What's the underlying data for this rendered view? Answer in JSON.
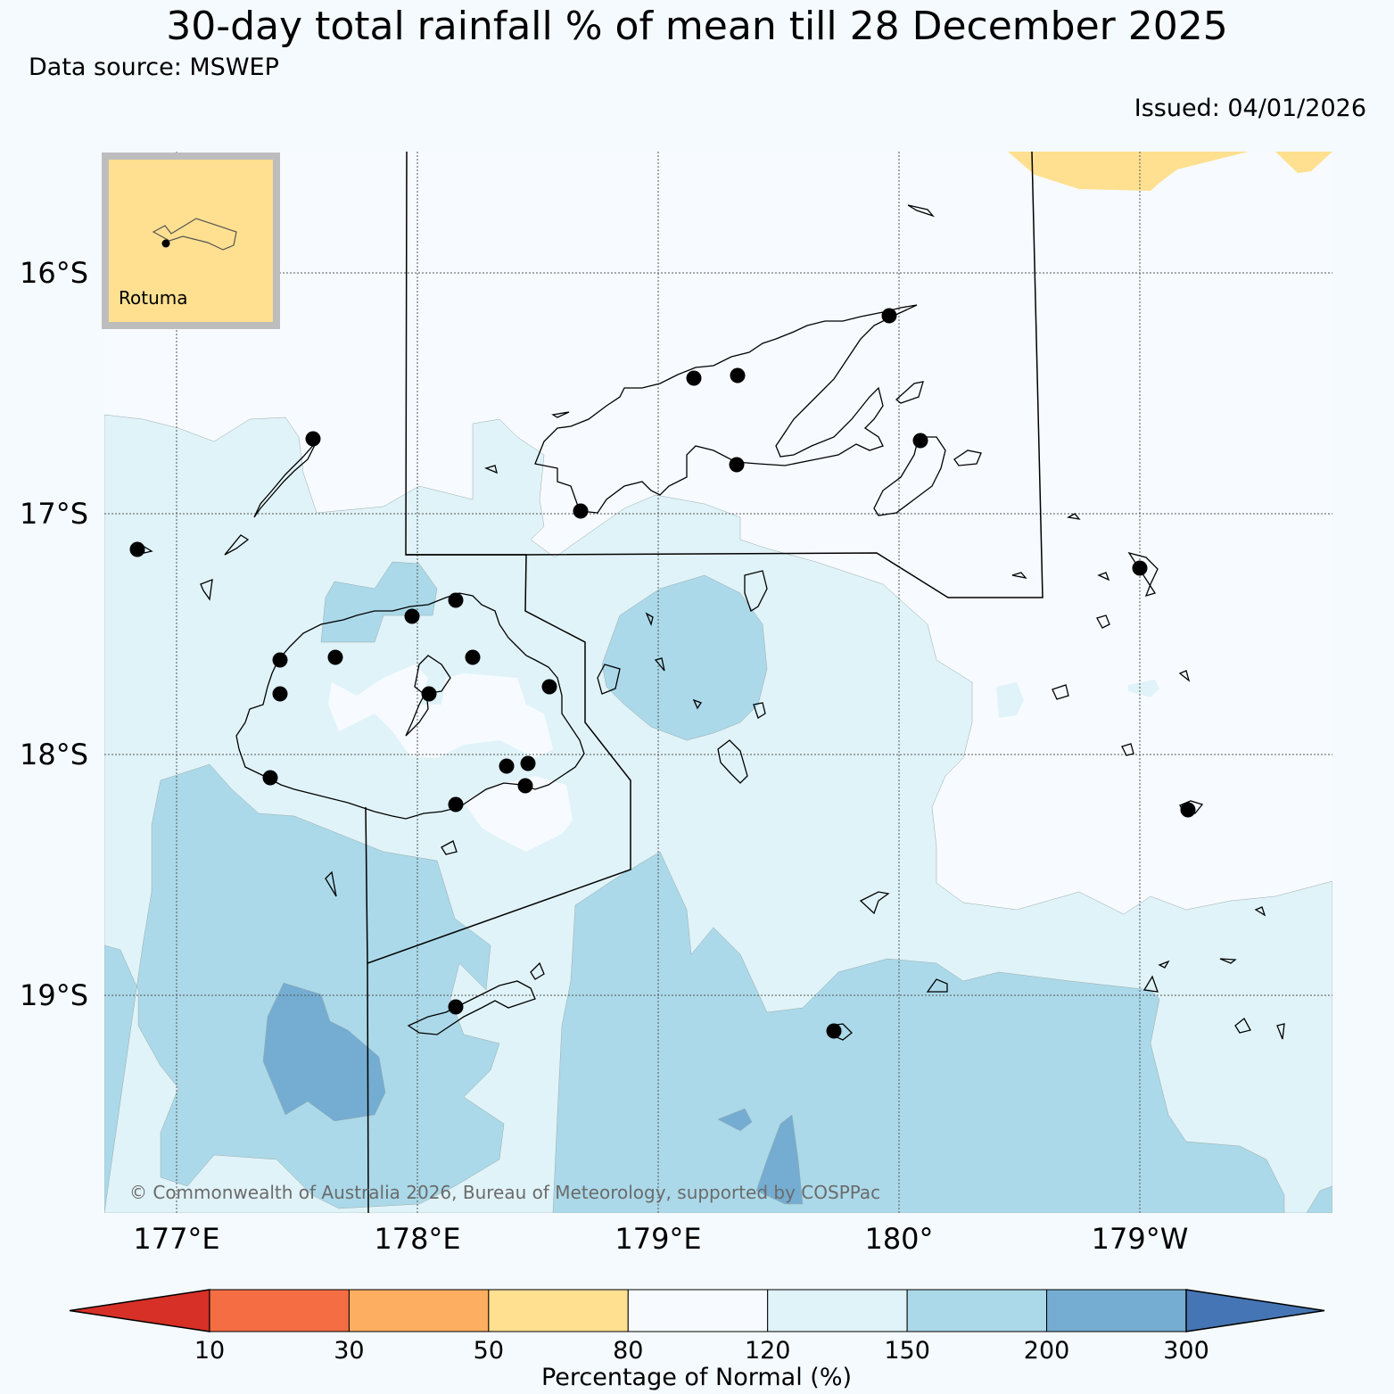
{
  "header": {
    "title": "30-day total rainfall % of mean till 28 December 2025",
    "source": "Data source: MSWEP",
    "issued": "Issued: 04/01/2026"
  },
  "map": {
    "lat_labels": [
      "16°S",
      "17°S",
      "18°S",
      "19°S"
    ],
    "lon_labels": [
      "177°E",
      "178°E",
      "179°E",
      "180°",
      "179°W"
    ],
    "inset_label": "Rotuma",
    "copyright": "© Commonwealth of Australia 2026, Bureau of Meteorology, supported by COSPPac"
  },
  "colorbar": {
    "title": "Percentage of Normal (%)",
    "ticks": [
      "10",
      "30",
      "50",
      "80",
      "120",
      "150",
      "200",
      "300"
    ],
    "colors": [
      "#d73027",
      "#f46d43",
      "#fdae61",
      "#fee090",
      "#f7fbff",
      "#e0f3f8",
      "#abd9e9",
      "#74add1",
      "#4575b4"
    ]
  },
  "colors": {
    "background": "#f5fafe",
    "land_outline": "#000000",
    "station": "#000000"
  }
}
